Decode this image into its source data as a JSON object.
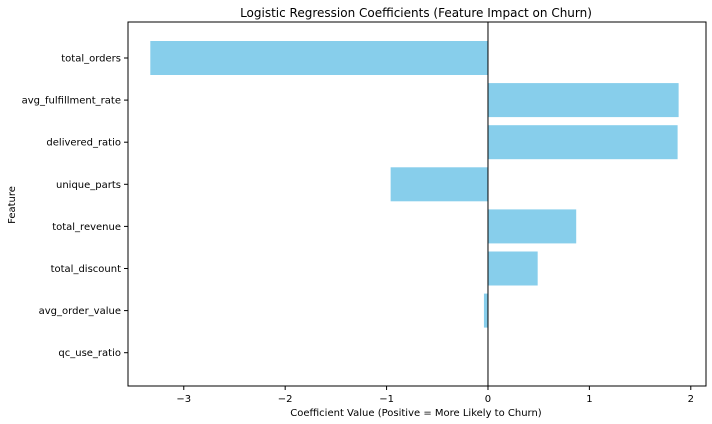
{
  "chart_data": {
    "type": "bar",
    "orientation": "horizontal",
    "title": "Logistic Regression Coefficients (Feature Impact on Churn)",
    "xlabel": "Coefficient Value (Positive = More Likely to Churn)",
    "ylabel": "Feature",
    "categories": [
      "total_orders",
      "avg_fulfillment_rate",
      "delivered_ratio",
      "unique_parts",
      "total_revenue",
      "total_discount",
      "avg_order_value",
      "qc_use_ratio"
    ],
    "values": [
      -3.33,
      1.88,
      1.87,
      -0.96,
      0.87,
      0.49,
      -0.04,
      0.0
    ],
    "xlim": [
      -3.55,
      2.15
    ],
    "xticks": [
      -3,
      -2,
      -1,
      0,
      1,
      2
    ],
    "xtick_labels": [
      "−3",
      "−2",
      "−1",
      "0",
      "1",
      "2"
    ],
    "bar_color": "#87ceeb",
    "zero_line_color": "#000000",
    "grid": false,
    "legend": "none"
  }
}
